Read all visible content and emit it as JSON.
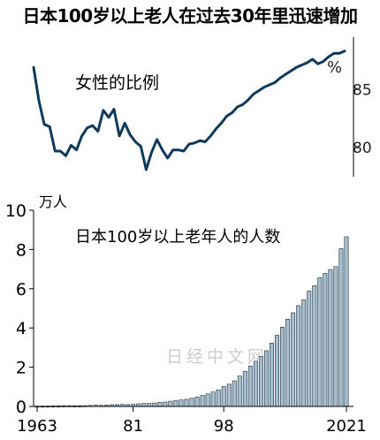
{
  "title": "日本100岁以上老人在过去30年里迅速增加",
  "watermark": "日经中文网",
  "chart_data": [
    {
      "type": "line",
      "title": "女性的比例",
      "ylabel": "%",
      "ylim": [
        77.5,
        89.5
      ],
      "yticks": [
        80,
        85
      ],
      "x": [
        1963,
        1964,
        1965,
        1966,
        1967,
        1968,
        1969,
        1970,
        1971,
        1972,
        1973,
        1974,
        1975,
        1976,
        1977,
        1978,
        1979,
        1980,
        1981,
        1982,
        1983,
        1984,
        1985,
        1986,
        1987,
        1988,
        1989,
        1990,
        1991,
        1992,
        1993,
        1994,
        1995,
        1996,
        1997,
        1998,
        1999,
        2000,
        2001,
        2002,
        2003,
        2004,
        2005,
        2006,
        2007,
        2008,
        2009,
        2010,
        2011,
        2012,
        2013,
        2014,
        2015,
        2016,
        2017,
        2018,
        2019,
        2020,
        2021
      ],
      "values": [
        86.9,
        84.0,
        82.0,
        81.8,
        79.7,
        79.7,
        79.3,
        80.2,
        79.8,
        81.0,
        81.7,
        81.9,
        81.4,
        83.2,
        82.6,
        83.3,
        81.0,
        82.1,
        81.1,
        80.5,
        80.1,
        78.1,
        79.6,
        80.7,
        79.8,
        79.1,
        79.8,
        79.8,
        79.7,
        80.3,
        80.4,
        80.6,
        80.5,
        81.0,
        81.6,
        82.1,
        82.7,
        83.0,
        83.5,
        83.7,
        84.1,
        84.6,
        84.9,
        85.2,
        85.4,
        85.6,
        86.0,
        86.3,
        86.6,
        86.9,
        87.1,
        87.3,
        87.6,
        87.2,
        87.4,
        87.8,
        88.1,
        88.1,
        88.3
      ]
    },
    {
      "type": "bar",
      "title": "日本100岁以上老年人的人数",
      "ylabel": "万人",
      "ylim": [
        0,
        10
      ],
      "yticks": [
        0,
        2,
        4,
        6,
        8,
        10
      ],
      "xtick_labels": [
        "1963",
        "81",
        "98",
        "2021"
      ],
      "x": [
        1963,
        1964,
        1965,
        1966,
        1967,
        1968,
        1969,
        1970,
        1971,
        1972,
        1973,
        1974,
        1975,
        1976,
        1977,
        1978,
        1979,
        1980,
        1981,
        1982,
        1983,
        1984,
        1985,
        1986,
        1987,
        1988,
        1989,
        1990,
        1991,
        1992,
        1993,
        1994,
        1995,
        1996,
        1997,
        1998,
        1999,
        2000,
        2001,
        2002,
        2003,
        2004,
        2005,
        2006,
        2007,
        2008,
        2009,
        2010,
        2011,
        2012,
        2013,
        2014,
        2015,
        2016,
        2017,
        2018,
        2019,
        2020,
        2021
      ],
      "values": [
        0.0153,
        0.0191,
        0.0198,
        0.0252,
        0.0255,
        0.0327,
        0.0373,
        0.031,
        0.0339,
        0.0405,
        0.0495,
        0.0627,
        0.0548,
        0.0666,
        0.0882,
        0.0937,
        0.1049,
        0.0968,
        0.1072,
        0.1354,
        0.1524,
        0.1567,
        0.174,
        0.2064,
        0.2271,
        0.2668,
        0.3078,
        0.3298,
        0.3625,
        0.4152,
        0.4802,
        0.5593,
        0.6378,
        0.7373,
        0.8491,
        1.0158,
        1.1346,
        1.3036,
        1.5475,
        1.7934,
        2.0561,
        2.3038,
        2.5554,
        2.8395,
        3.2295,
        3.6276,
        4.0399,
        4.4449,
        4.7756,
        5.1376,
        5.4397,
        5.882,
        6.1568,
        6.5692,
        6.7824,
        6.9785,
        7.1274,
        8.045,
        8.651
      ]
    }
  ]
}
